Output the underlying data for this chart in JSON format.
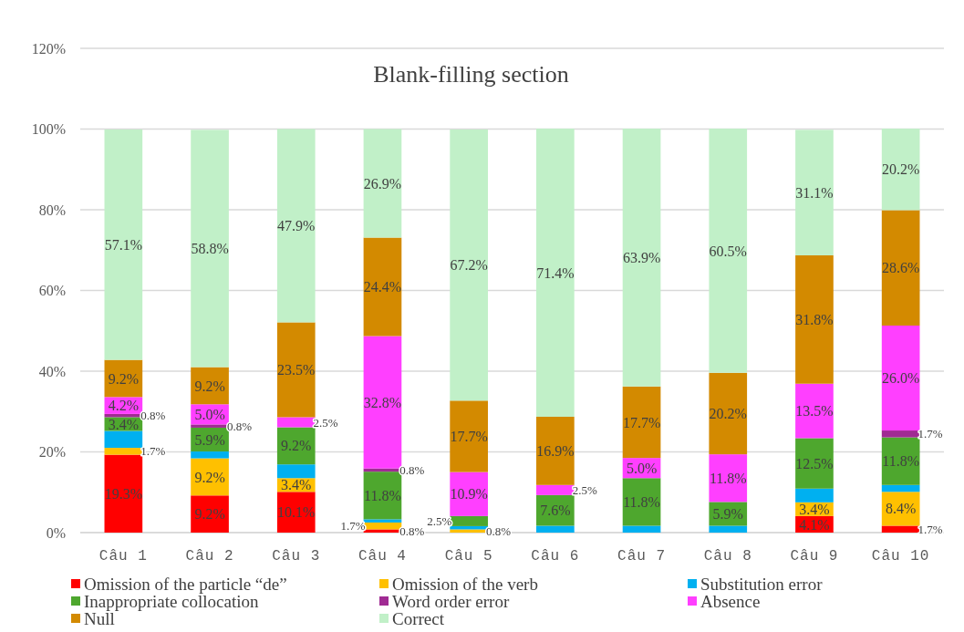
{
  "chart_data": {
    "type": "bar",
    "title": "Blank-filling section",
    "stacked": true,
    "grid": "y",
    "legend": "bottom",
    "categories": [
      "Câu 1",
      "Câu 2",
      "Câu 3",
      "Câu 4",
      "Câu 5",
      "Câu 6",
      "Câu 7",
      "Câu 8",
      "Câu 9",
      "Câu 10"
    ],
    "ylim": [
      0,
      120
    ],
    "yticks": [
      {
        "value": 0,
        "label": "0%"
      },
      {
        "value": 20,
        "label": "20%"
      },
      {
        "value": 40,
        "label": "40%"
      },
      {
        "value": 60,
        "label": "60%"
      },
      {
        "value": 80,
        "label": "80%"
      },
      {
        "value": 100,
        "label": "100%"
      },
      {
        "value": 120,
        "label": "120%"
      }
    ],
    "series": [
      {
        "name": "Omission of the particle “de”",
        "color": "#ff0000",
        "values": [
          19.3,
          9.2,
          10.1,
          0.8,
          null,
          null,
          null,
          null,
          4.1,
          1.7
        ],
        "value_labels": [
          "19.3%",
          "9.2%",
          "10.1%",
          "0.8%",
          null,
          null,
          null,
          null,
          "4.1%",
          "1.7%"
        ]
      },
      {
        "name": "Omission of the verb",
        "color": "#ffc000",
        "values": [
          1.7,
          9.2,
          3.4,
          1.7,
          0.8,
          null,
          null,
          null,
          3.4,
          8.4
        ],
        "value_labels": [
          "1.7%",
          "9.2%",
          "3.4%",
          "1.7%",
          "0.8%",
          null,
          null,
          null,
          "3.4%",
          "8.4%"
        ]
      },
      {
        "name": "Substitution error",
        "color": "#00b0f0",
        "values": [
          4.2,
          1.7,
          3.4,
          0.8,
          0.8,
          1.7,
          1.7,
          1.7,
          3.4,
          1.7
        ],
        "value_labels": [
          null,
          null,
          null,
          null,
          null,
          null,
          null,
          null,
          null,
          null
        ]
      },
      {
        "name": "Inappropriate collocation",
        "color": "#4ea72e",
        "values": [
          3.4,
          5.9,
          9.2,
          11.8,
          2.5,
          7.6,
          11.8,
          5.9,
          12.5,
          11.8
        ],
        "value_labels": [
          "3.4%",
          "5.9%",
          "9.2%",
          "11.8%",
          "2.5%",
          "7.6%",
          "11.8%",
          "5.9%",
          "12.5%",
          "11.8%"
        ]
      },
      {
        "name": "Word order error",
        "color": "#a02b93",
        "values": [
          0.8,
          0.8,
          null,
          0.8,
          null,
          null,
          null,
          null,
          null,
          1.7
        ],
        "value_labels": [
          "0.8%",
          "0.8%",
          null,
          "0.8%",
          null,
          null,
          null,
          null,
          null,
          "1.7%"
        ]
      },
      {
        "name": "Absence",
        "color": "#ff3fff",
        "values": [
          4.2,
          5.0,
          2.5,
          32.8,
          10.9,
          2.5,
          5.0,
          11.8,
          13.5,
          26.0
        ],
        "value_labels": [
          "4.2%",
          "5.0%",
          "2.5%",
          "32.8%",
          "10.9%",
          "2.5%",
          "5.0%",
          "11.8%",
          "13.5%",
          "26.0%"
        ]
      },
      {
        "name": "Null",
        "color": "#d38a00",
        "values": [
          9.2,
          9.2,
          23.5,
          24.4,
          17.7,
          16.9,
          17.7,
          20.2,
          31.8,
          28.6
        ],
        "value_labels": [
          "9.2%",
          "9.2%",
          "23.5%",
          "24.4%",
          "17.7%",
          "16.9%",
          "17.7%",
          "20.2%",
          "31.8%",
          "28.6%"
        ]
      },
      {
        "name": "Correct",
        "color": "#c1f0c8",
        "values": [
          57.1,
          58.8,
          47.9,
          26.9,
          67.2,
          71.4,
          63.9,
          60.5,
          31.1,
          20.2
        ],
        "value_labels": [
          "57.1%",
          "58.8%",
          "47.9%",
          "26.9%",
          "67.2%",
          "71.4%",
          "63.9%",
          "60.5%",
          "31.1%",
          "20.2%"
        ]
      }
    ]
  }
}
